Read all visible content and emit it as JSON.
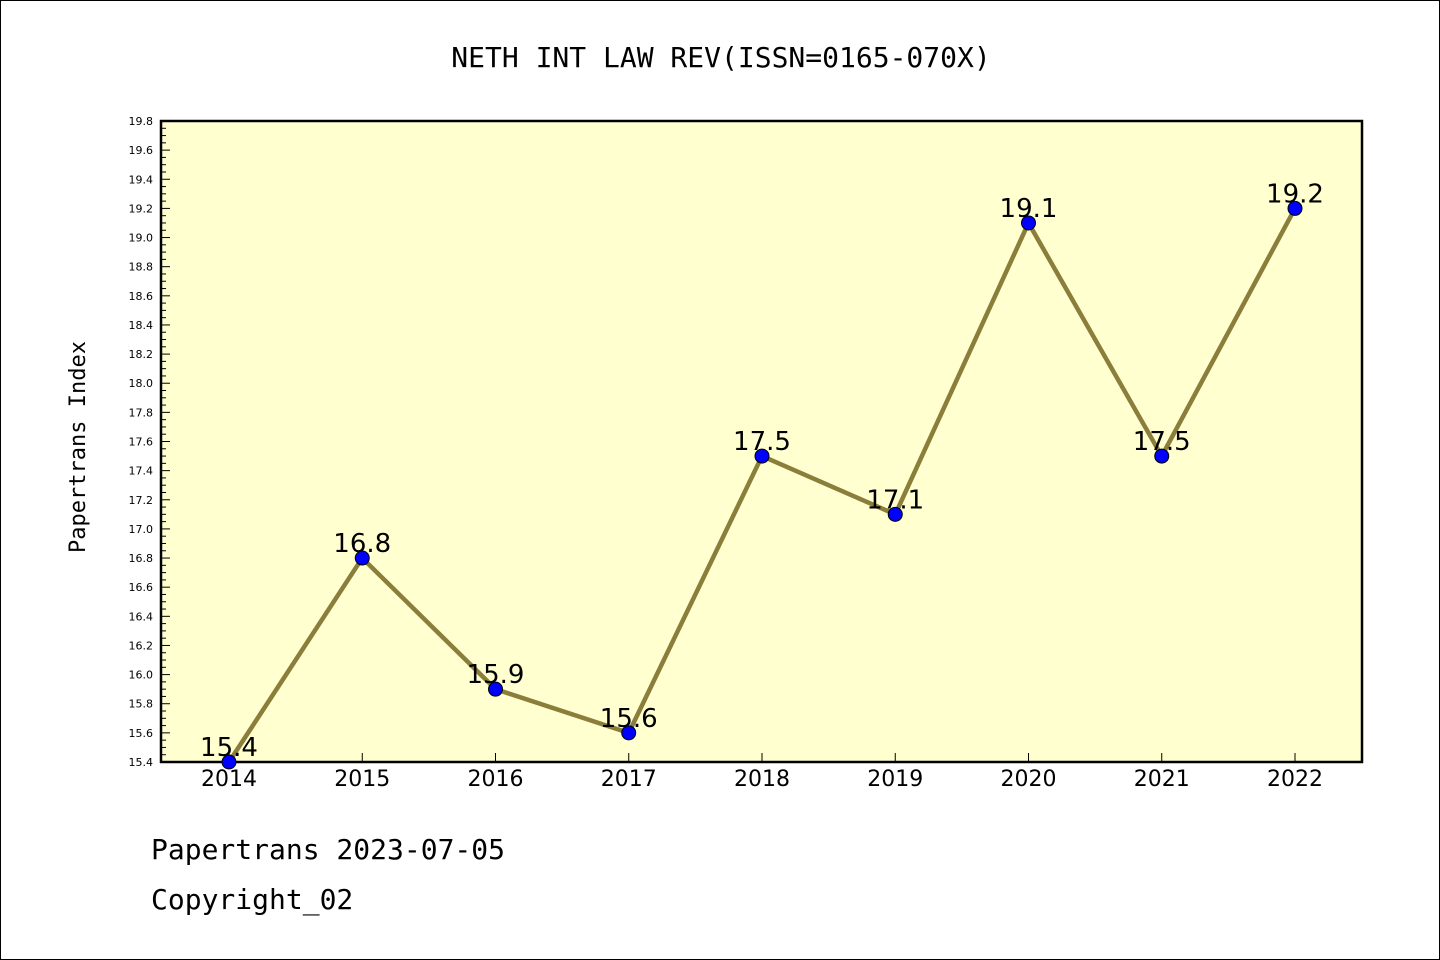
{
  "chart_data": {
    "type": "line",
    "title": "NETH INT LAW REV(ISSN=0165-070X)",
    "xlabel": "",
    "ylabel": "Papertrans Index",
    "categories": [
      "2014",
      "2015",
      "2016",
      "2017",
      "2018",
      "2019",
      "2020",
      "2021",
      "2022"
    ],
    "values": [
      15.4,
      16.8,
      15.9,
      15.6,
      17.5,
      17.1,
      19.1,
      17.5,
      19.2
    ],
    "data_labels": [
      "15.4",
      "16.8",
      "15.9",
      "15.6",
      "17.5",
      "17.1",
      "19.1",
      "17.5",
      "19.2"
    ],
    "ylim": [
      15.4,
      19.8
    ],
    "yticks": [
      "15.4",
      "15.6",
      "15.8",
      "16.0",
      "16.2",
      "16.4",
      "16.6",
      "16.8",
      "17.0",
      "17.2",
      "17.4",
      "17.6",
      "17.8",
      "18.0",
      "18.2",
      "18.4",
      "18.6",
      "18.8",
      "19.0",
      "19.2",
      "19.4",
      "19.6",
      "19.8"
    ],
    "grid": false,
    "colors": {
      "plot_background": "#ffffd0",
      "line": "#8b7d3a",
      "marker": "#0000ff"
    }
  },
  "footer": {
    "line1": "Papertrans 2023-07-05",
    "line2": "Copyright_02"
  }
}
